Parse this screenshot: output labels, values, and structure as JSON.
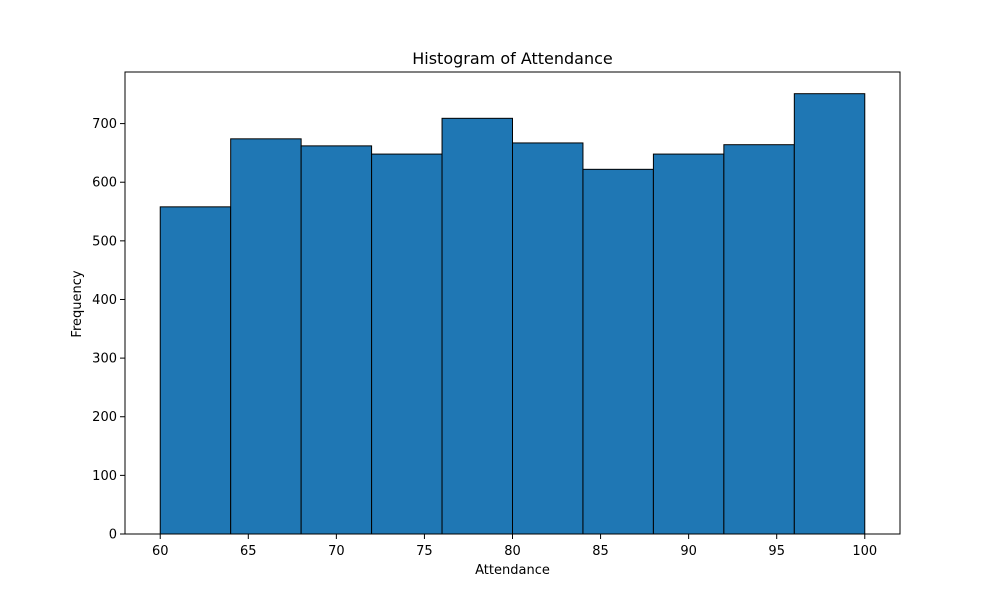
{
  "chart_data": {
    "type": "bar",
    "title": "Histogram of Attendance",
    "xlabel": "Attendance",
    "ylabel": "Frequency",
    "bins": [
      {
        "x0": 60,
        "x1": 64,
        "value": 558
      },
      {
        "x0": 64,
        "x1": 68,
        "value": 674
      },
      {
        "x0": 68,
        "x1": 72,
        "value": 662
      },
      {
        "x0": 72,
        "x1": 76,
        "value": 648
      },
      {
        "x0": 76,
        "x1": 80,
        "value": 709
      },
      {
        "x0": 80,
        "x1": 84,
        "value": 667
      },
      {
        "x0": 84,
        "x1": 88,
        "value": 622
      },
      {
        "x0": 88,
        "x1": 92,
        "value": 648
      },
      {
        "x0": 92,
        "x1": 96,
        "value": 664
      },
      {
        "x0": 96,
        "x1": 100,
        "value": 751
      }
    ],
    "xlim": [
      58,
      102
    ],
    "ylim": [
      0,
      788
    ],
    "xticks": [
      60,
      65,
      70,
      75,
      80,
      85,
      90,
      95,
      100
    ],
    "yticks": [
      0,
      100,
      200,
      300,
      400,
      500,
      600,
      700
    ],
    "grid": false,
    "colors": {
      "bar_fill": "#1f77b4",
      "bar_edge": "#000000",
      "axes": "#000000",
      "background": "#ffffff"
    }
  }
}
